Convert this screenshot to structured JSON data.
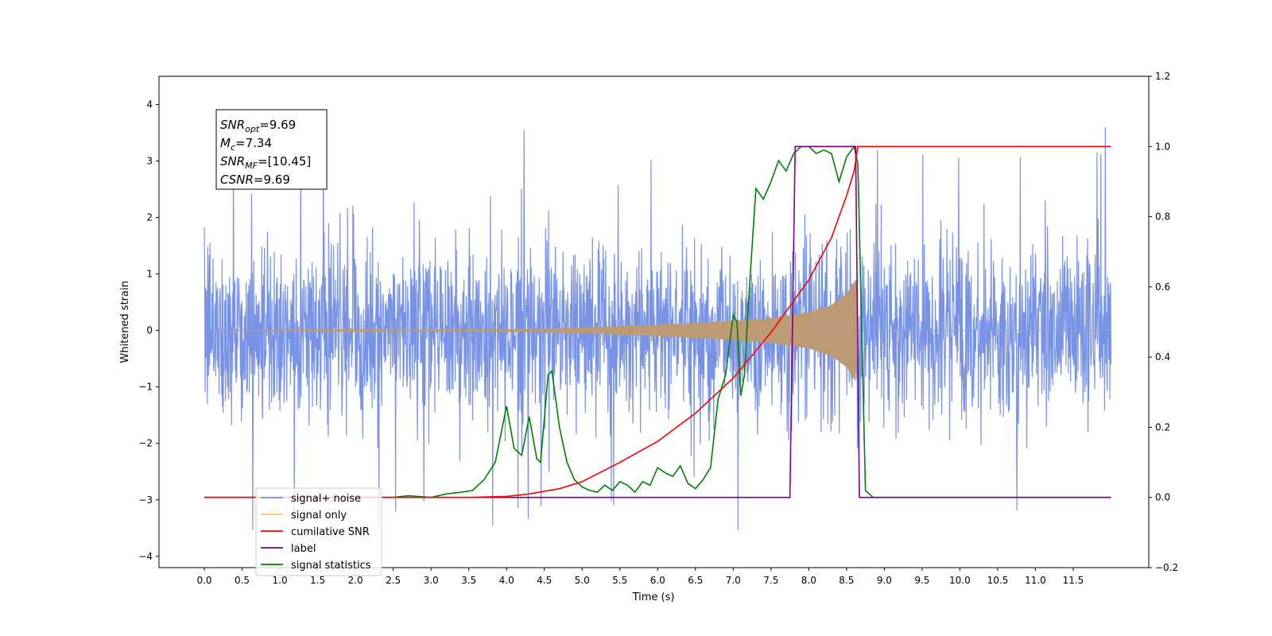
{
  "chart_data": {
    "type": "line",
    "xlabel": "Time (s)",
    "ylabel_left": "Whitened strain",
    "ylabel_right": "",
    "xlim": [
      -0.6,
      12.5
    ],
    "ylim_left": [
      -4.2,
      4.5
    ],
    "ylim_right": [
      -0.2,
      1.2
    ],
    "x_ticks": [
      0.0,
      0.5,
      1.0,
      1.5,
      2.0,
      2.5,
      3.0,
      3.5,
      4.0,
      4.5,
      5.0,
      5.5,
      6.0,
      6.5,
      7.0,
      7.5,
      8.0,
      8.5,
      9.0,
      9.5,
      10.0,
      10.5,
      11.0,
      11.5
    ],
    "x_tick_labels": [
      "0.0",
      "0.5",
      "1.0",
      "1.5",
      "2.0",
      "2.5",
      "3.0",
      "3.5",
      "4.0",
      "4.5",
      "5.0",
      "5.5",
      "6.0",
      "6.5",
      "7.0",
      "7.5",
      "8.0",
      "8.5",
      "9.0",
      "9.5",
      "10.0",
      "10.5",
      "11.0",
      "11.5"
    ],
    "y_left_ticks": [
      -4,
      -3,
      -2,
      -1,
      0,
      1,
      2,
      3,
      4
    ],
    "y_left_tick_labels": [
      "−4",
      "−3",
      "−2",
      "−1",
      "0",
      "1",
      "2",
      "3",
      "4"
    ],
    "y_right_ticks": [
      -0.2,
      0.0,
      0.2,
      0.4,
      0.6,
      0.8,
      1.0,
      1.2
    ],
    "y_right_tick_labels": [
      "−0.2",
      "0.0",
      "0.2",
      "0.4",
      "0.6",
      "0.8",
      "1.0",
      "1.2"
    ],
    "grid": false,
    "legend_placement": "lower-left",
    "annotation": {
      "lines": [
        {
          "base": "SNR",
          "sub": "opt",
          "value": "=9.69"
        },
        {
          "base": "M",
          "sub": "c",
          "value": "=7.34"
        },
        {
          "base": "SNR",
          "sub": "MF",
          "value": "=[10.45]"
        },
        {
          "base": "CSNR",
          "sub": "",
          "value": "=9.69"
        }
      ]
    },
    "series": [
      {
        "name": "signal+ noise",
        "axis": "left",
        "color": "#7893e6",
        "kind": "noise",
        "x_range": [
          0.0,
          12.0
        ],
        "typical_amplitude": [
          -2.0,
          2.2
        ],
        "peak_max": 4.1,
        "peak_min": -3.8
      },
      {
        "name": "signal only",
        "axis": "left",
        "color": "#bb9a74",
        "kind": "chirp",
        "x_range": [
          0.0,
          8.65
        ],
        "envelope": [
          [
            0.0,
            0.0
          ],
          [
            4.0,
            0.02
          ],
          [
            5.0,
            0.05
          ],
          [
            6.0,
            0.1
          ],
          [
            7.0,
            0.17
          ],
          [
            7.5,
            0.22
          ],
          [
            8.0,
            0.32
          ],
          [
            8.3,
            0.45
          ],
          [
            8.5,
            0.65
          ],
          [
            8.62,
            0.9
          ],
          [
            8.65,
            0.0
          ],
          [
            12.0,
            0.0
          ]
        ]
      },
      {
        "name": "cumilative SNR",
        "axis": "right",
        "color": "#ff0000",
        "x": [
          0.0,
          3.5,
          4.0,
          4.3,
          4.7,
          5.0,
          5.5,
          6.0,
          6.5,
          7.0,
          7.5,
          8.0,
          8.3,
          8.5,
          8.6,
          8.65,
          12.0
        ],
        "y": [
          0.0,
          0.0,
          0.003,
          0.01,
          0.025,
          0.045,
          0.1,
          0.16,
          0.24,
          0.34,
          0.47,
          0.62,
          0.74,
          0.86,
          0.93,
          1.0,
          1.0
        ]
      },
      {
        "name": "label",
        "axis": "right",
        "color": "#800080",
        "x": [
          0.0,
          7.75,
          7.82,
          8.62,
          8.67,
          12.0
        ],
        "y": [
          0.0,
          0.0,
          1.0,
          1.0,
          0.0,
          0.0
        ]
      },
      {
        "name": "signal statistics",
        "axis": "right",
        "color": "#008000",
        "x": [
          0.0,
          2.5,
          2.7,
          3.0,
          3.2,
          3.4,
          3.55,
          3.7,
          3.85,
          4.0,
          4.1,
          4.2,
          4.3,
          4.4,
          4.45,
          4.55,
          4.6,
          4.7,
          4.8,
          4.9,
          5.0,
          5.1,
          5.2,
          5.3,
          5.4,
          5.5,
          5.6,
          5.7,
          5.8,
          5.9,
          6.0,
          6.1,
          6.2,
          6.3,
          6.4,
          6.5,
          6.6,
          6.7,
          6.8,
          6.9,
          7.0,
          7.05,
          7.1,
          7.15,
          7.2,
          7.3,
          7.4,
          7.5,
          7.6,
          7.7,
          7.8,
          7.9,
          8.0,
          8.1,
          8.2,
          8.3,
          8.4,
          8.5,
          8.6,
          8.65,
          8.75,
          8.85,
          9.0,
          12.0
        ],
        "y": [
          0.0,
          0.0,
          0.005,
          0.0,
          0.01,
          0.015,
          0.02,
          0.05,
          0.1,
          0.26,
          0.14,
          0.12,
          0.23,
          0.11,
          0.1,
          0.35,
          0.36,
          0.2,
          0.1,
          0.05,
          0.03,
          0.02,
          0.015,
          0.035,
          0.02,
          0.045,
          0.035,
          0.015,
          0.045,
          0.035,
          0.085,
          0.07,
          0.06,
          0.09,
          0.04,
          0.025,
          0.05,
          0.085,
          0.28,
          0.35,
          0.52,
          0.5,
          0.29,
          0.35,
          0.55,
          0.88,
          0.85,
          0.9,
          0.96,
          0.93,
          0.98,
          1.0,
          1.0,
          0.98,
          0.99,
          0.98,
          0.9,
          0.97,
          1.0,
          0.95,
          0.02,
          0.0,
          0.0,
          0.0
        ]
      }
    ],
    "legend": [
      {
        "name": "signal+ noise",
        "color": "#7893e6"
      },
      {
        "name": "signal only",
        "color": "#ffc66b"
      },
      {
        "name": "cumilative SNR",
        "color": "#ff0000"
      },
      {
        "name": "label",
        "color": "#800080"
      },
      {
        "name": "signal statistics",
        "color": "#008000"
      }
    ]
  }
}
